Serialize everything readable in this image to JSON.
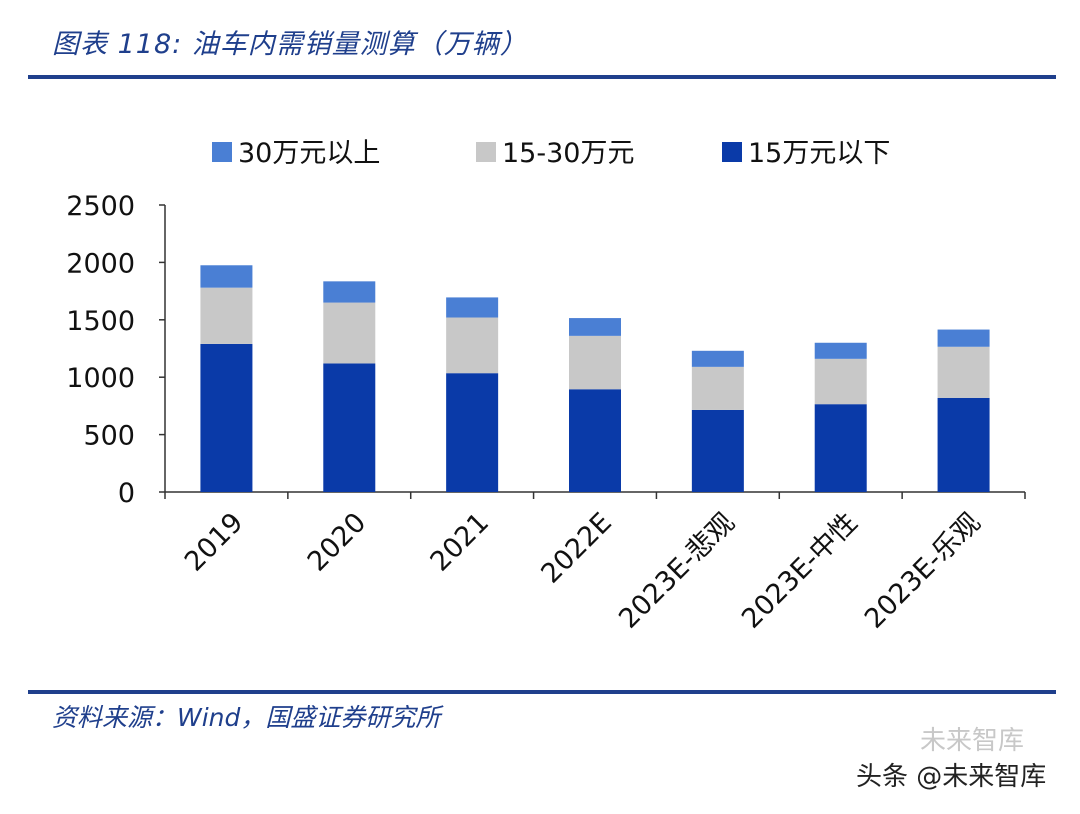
{
  "header": {
    "title": "图表 118:  油车内需销量测算（万辆）"
  },
  "footer": {
    "source": "资料来源：Wind，国盛证券研究所",
    "watermark": "头条 @未来智库",
    "watermark_logo": "未来智库"
  },
  "colors": {
    "rule": "#1f3f8c",
    "above_30": "#4a7fd4",
    "mid_15_30": "#c8c8c8",
    "below_15": "#0a3aa8",
    "axis": "#333333"
  },
  "chart_data": {
    "type": "bar",
    "stacked": true,
    "title": "",
    "xlabel": "",
    "ylabel": "",
    "ylim": [
      0,
      2500
    ],
    "yticks": [
      "0",
      "500",
      "1000",
      "1500",
      "2000",
      "2500"
    ],
    "grid": false,
    "legend_position": "top",
    "categories": [
      "2019",
      "2020",
      "2021",
      "2022E",
      "2023E-悲观",
      "2023E-中性",
      "2023E-乐观"
    ],
    "series": [
      {
        "name": "15万元以下",
        "color": "#0a3aa8",
        "values": [
          1290,
          1120,
          1035,
          895,
          715,
          765,
          820
        ]
      },
      {
        "name": "15-30万元",
        "color": "#c8c8c8",
        "values": [
          490,
          530,
          485,
          465,
          375,
          395,
          445
        ]
      },
      {
        "name": "30万元以上",
        "color": "#4a7fd4",
        "values": [
          195,
          185,
          175,
          155,
          140,
          140,
          150
        ]
      }
    ],
    "legend_order": [
      "30万元以上",
      "15-30万元",
      "15万元以下"
    ]
  }
}
